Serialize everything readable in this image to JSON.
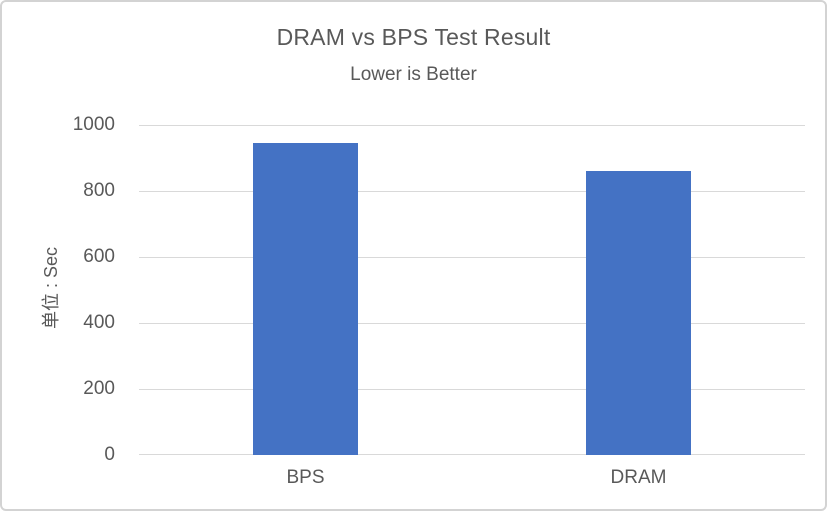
{
  "window": {
    "background": "#ffffff",
    "border_color": "#d3d3d3"
  },
  "chart_data": {
    "type": "bar",
    "title": "DRAM vs BPS Test Result",
    "subtitle": "Lower is Better",
    "ylabel": "单位 : Sec",
    "xlabel": "",
    "categories": [
      "BPS",
      "DRAM"
    ],
    "values": [
      945,
      862
    ],
    "ylim": [
      0,
      1000
    ],
    "yticks": [
      0,
      200,
      400,
      600,
      800,
      1000
    ],
    "grid": true,
    "legend_position": "none",
    "bar_color": "#4472C4",
    "text_color": "#595959",
    "grid_color": "#D9D9D9",
    "axis_color": "#D9D9D9"
  }
}
